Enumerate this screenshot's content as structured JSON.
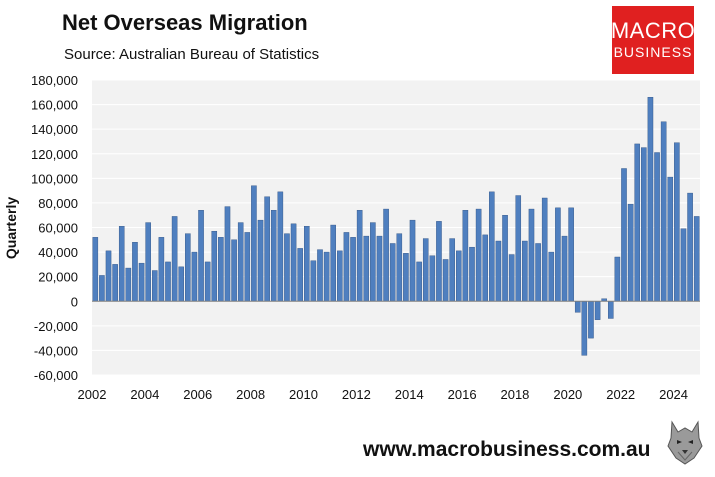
{
  "header": {
    "title": "Net Overseas Migration",
    "subtitle": "Source: Australian Bureau of Statistics"
  },
  "logo": {
    "line1": "MACRO",
    "line2": "BUSINESS",
    "color": "#e02020"
  },
  "footer": {
    "url": "www.macrobusiness.com.au",
    "mascot_icon": "wolf-icon"
  },
  "colors": {
    "bar_fill": "#4f7fbf",
    "bar_stroke": "#2c4f80",
    "plot_bg": "#f2f2f2",
    "grid": "#ffffff"
  },
  "chart_data": {
    "type": "bar",
    "title": "Net Overseas Migration",
    "xlabel": "",
    "ylabel": "Quarterly",
    "ylim": [
      -60000,
      180000
    ],
    "yticks": [
      -60000,
      -40000,
      -20000,
      0,
      20000,
      40000,
      60000,
      80000,
      100000,
      120000,
      140000,
      160000,
      180000
    ],
    "ytick_labels": [
      "-60,000",
      "-40,000",
      "-20,000",
      "0",
      "20,000",
      "40,000",
      "60,000",
      "80,000",
      "100,000",
      "120,000",
      "140,000",
      "160,000",
      "180,000"
    ],
    "xtick_labels": [
      "2002",
      "2004",
      "2006",
      "2008",
      "2010",
      "2012",
      "2014",
      "2016",
      "2018",
      "2020",
      "2022",
      "2024"
    ],
    "start_year": 2002,
    "periods_per_year": 4,
    "values": [
      52000,
      21000,
      41000,
      30000,
      61000,
      27000,
      48000,
      31000,
      64000,
      25000,
      52000,
      32000,
      69000,
      28000,
      55000,
      40000,
      74000,
      32000,
      57000,
      52000,
      77000,
      50000,
      64000,
      56000,
      94000,
      66000,
      85000,
      74000,
      89000,
      55000,
      63000,
      43000,
      61000,
      33000,
      42000,
      40000,
      62000,
      41000,
      56000,
      52000,
      74000,
      53000,
      64000,
      53000,
      75000,
      47000,
      55000,
      39000,
      66000,
      32000,
      51000,
      37000,
      65000,
      34000,
      51000,
      41000,
      74000,
      44000,
      75000,
      54000,
      89000,
      49000,
      70000,
      38000,
      86000,
      49000,
      75000,
      47000,
      84000,
      40000,
      76000,
      53000,
      76000,
      -9000,
      -44000,
      -30000,
      -15000,
      2000,
      -14000,
      36000,
      108000,
      79000,
      128000,
      125000,
      166000,
      121000,
      146000,
      101000,
      129000,
      59000,
      88000,
      69000
    ]
  }
}
